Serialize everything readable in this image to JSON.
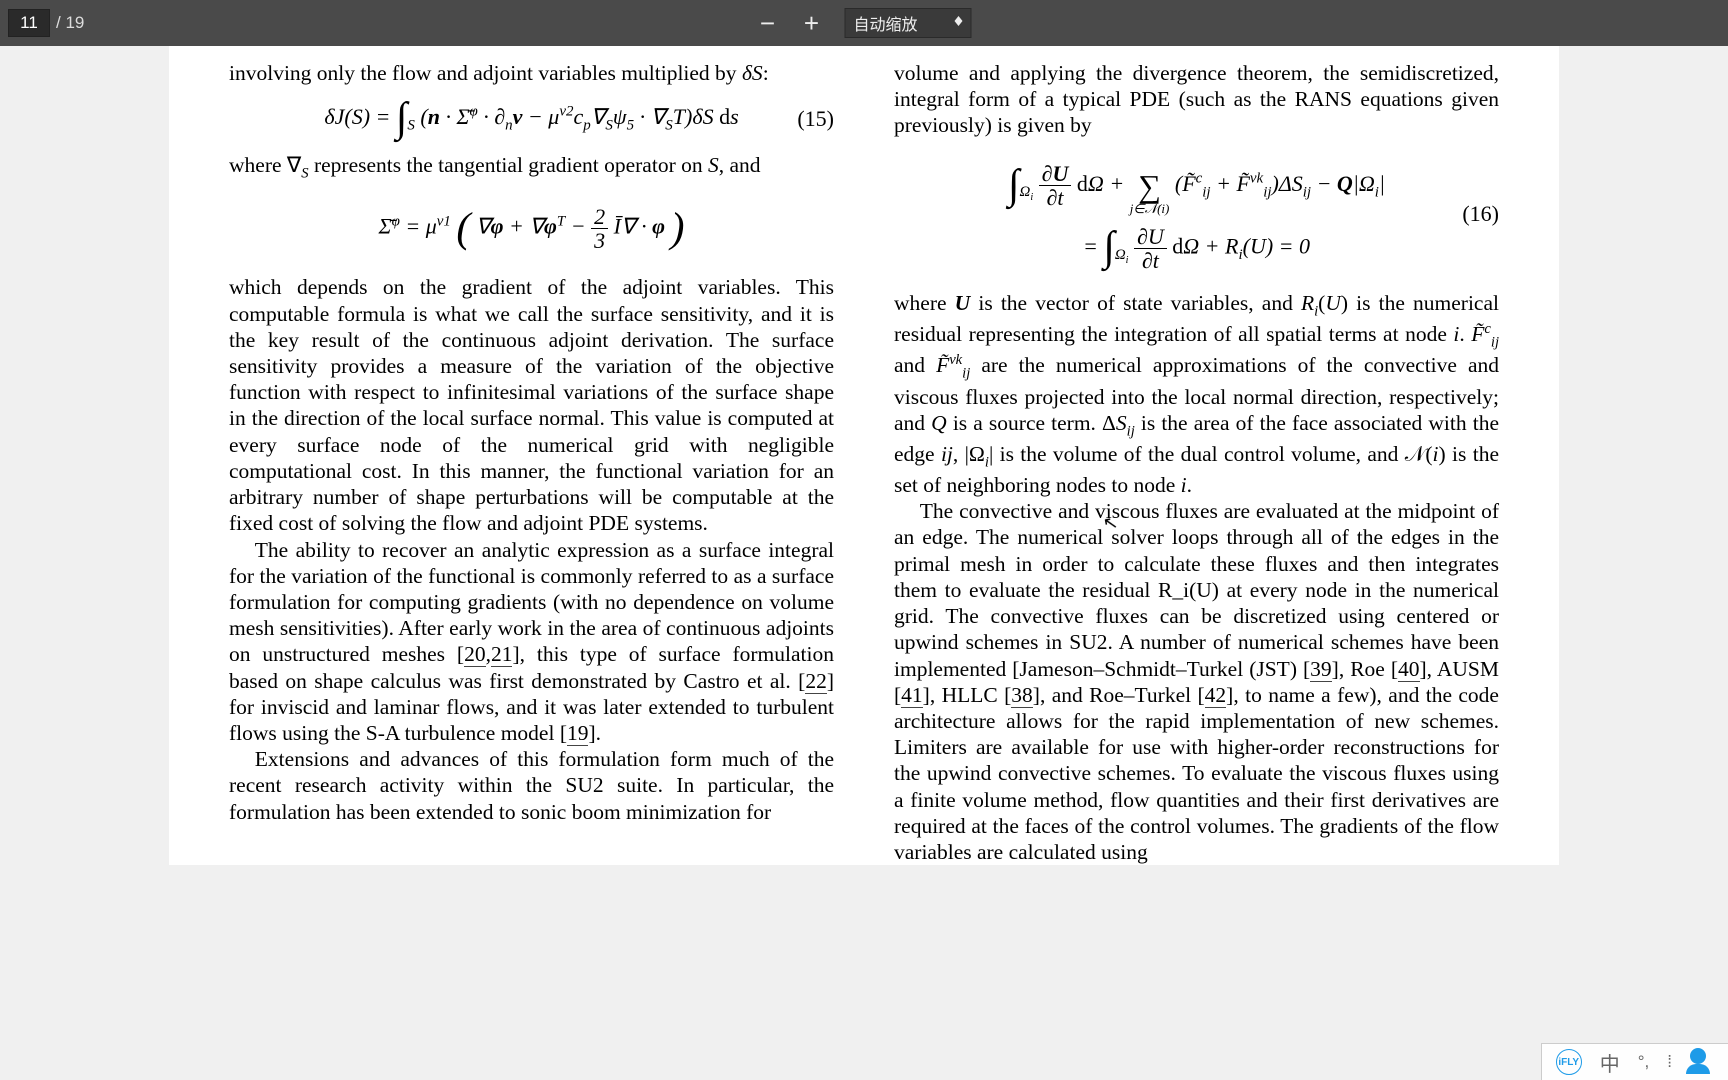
{
  "toolbar": {
    "current_page": "11",
    "total_pages": "/ 19",
    "zoom_out_label": "−",
    "zoom_in_label": "+",
    "zoom_select_label": "自动缩放"
  },
  "left_column": {
    "intro_line": "involving only the flow and adjoint variables multiplied by δS:",
    "eq15_num": "(15)",
    "eq15_text": "δJ(S) = ∫_S (n · Σ̄̄^φ · ∂_n v − μ^v2 c_p ∇_S ψ_5 · ∇_S T) δS ds",
    "para_nabla": "where ∇_S represents the tangential gradient operator on S, and",
    "eq_sigma_text": "Σ̄̄^φ = μ^v1 ( ∇φ + ∇φ^T − (2/3) Ī ∇ · φ )",
    "para_long": "which depends on the gradient of the adjoint variables. This computable formula is what we call the surface sensitivity, and it is the key result of the continuous adjoint derivation. The surface sensitivity provides a measure of the variation of the objective function with respect to infinitesimal variations of the surface shape in the direction of the local surface normal. This value is computed at every surface node of the numerical grid with negligible computational cost. In this manner, the functional variation for an arbitrary number of shape perturbations will be computable at the fixed cost of solving the flow and adjoint PDE systems.",
    "para_ability_1": "The ability to recover an analytic expression as a surface integral for the variation of the functional is commonly referred to as a surface formulation for computing gradients (with no dependence on volume mesh sensitivities). After early work in the area of continuous adjoints on unstructured meshes [",
    "ref20": "20",
    "ref21": "21",
    "para_ability_2": "], this type of surface formulation based on shape calculus was first demonstrated by Castro et al. [",
    "ref22": "22",
    "para_ability_3": "] for inviscid and laminar flows, and it was later extended to turbulent flows using the S-A turbulence model [",
    "ref19": "19",
    "para_ability_4": "].",
    "para_ext": "Extensions and advances of this formulation form much of the recent research activity within the SU2 suite. In particular, the formulation has been extended to sonic boom minimization for"
  },
  "right_column": {
    "intro_line": "volume and applying the divergence theorem, the semidiscretized, integral form of a typical PDE (such as the RANS equations given previously) is given by",
    "eq16_num": "(16)",
    "eq16_line1": "∫_{Ω_i} (∂U/∂t) dΩ + Σ_{j∈N(i)} (F̃^c_{ij} + F̃^{vk}_{ij}) ΔS_{ij} − Q|Ω_i|",
    "eq16_line2": "= ∫_{Ω_i} (∂U/∂t) dΩ + R_i(U) = 0",
    "para_where": "where U is the vector of state variables, and R_i(U) is the numerical residual representing the integration of all spatial terms at node i. F̃^c_{ij} and F̃^{vk}_{ij} are the numerical approximations of the convective and viscous fluxes projected into the local normal direction, respectively; and Q is a source term. ΔS_{ij} is the area of the face associated with the edge ij, |Ω_i| is the volume of the dual control volume, and N(i) is the set of neighboring nodes to node i.",
    "para_conv_1": "The convective and viscous fluxes are evaluated at the midpoint of an edge. The numerical solver loops through all of the edges in the primal mesh in order to calculate these fluxes and then integrates them to evaluate the residual R_i(U) at every node in the numerical grid. The convective fluxes can be discretized using centered or upwind schemes in SU2. A number of numerical schemes have been implemented [Jameson–Schmidt–Turkel (JST) [",
    "ref39": "39",
    "para_conv_2": "], Roe [",
    "ref40": "40",
    "para_conv_3": "], AUSM [",
    "ref41": "41",
    "para_conv_4": "], HLLC [",
    "ref38": "38",
    "para_conv_5": "], and Roe–Turkel [",
    "ref42": "42",
    "para_conv_6": "], to name a few), and the code architecture allows for the rapid implementation of new schemes. Limiters are available for use with higher-order reconstructions for the upwind convective schemes. To evaluate the viscous fluxes using a finite volume method, flow quantities and their first derivatives are required at the faces of the control volumes. The gradients of the flow variables are calculated using"
  },
  "ime": {
    "logo": "iFLY",
    "lang": "中",
    "bullets": "⁞",
    "punct": "°,"
  },
  "colors": {
    "toolbar_bg": "#4a4a4a",
    "page_bg": "#ffffff",
    "text": "#000000",
    "ime_accent": "#1e9be8"
  }
}
